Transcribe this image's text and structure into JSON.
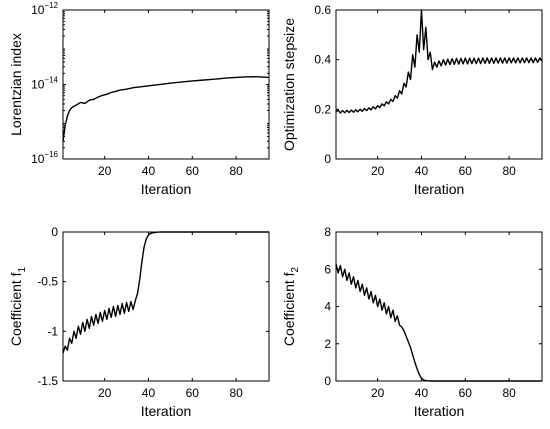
{
  "chart_data": [
    {
      "type": "line",
      "xlabel": "Iteration",
      "ylabel": "Lorentzian index",
      "yscale": "log",
      "xlim": [
        1,
        95
      ],
      "ylim": [
        1e-16,
        1e-12
      ],
      "xticks": [
        20,
        40,
        60,
        80
      ],
      "yticks": [
        {
          "value": 1e-16,
          "base": "10",
          "exp": "−16"
        },
        {
          "value": 1e-14,
          "base": "10",
          "exp": "−14"
        },
        {
          "value": 1e-12,
          "base": "10",
          "exp": "−12"
        }
      ],
      "series": [
        {
          "x": [
            1,
            2,
            3,
            4,
            5,
            7,
            9,
            11,
            13,
            15,
            17,
            19,
            21,
            23,
            25,
            27,
            30,
            33,
            36,
            40,
            44,
            48,
            52,
            56,
            60,
            64,
            68,
            72,
            76,
            80,
            84,
            88,
            92,
            95
          ],
          "y": [
            3e-16,
            8e-16,
            1.4e-15,
            2e-15,
            2.4e-15,
            2.8e-15,
            3.3e-15,
            3.1e-15,
            3.8e-15,
            4e-15,
            4.6e-15,
            5.1e-15,
            5.5e-15,
            6.1e-15,
            6.5e-15,
            7.1e-15,
            7.5e-15,
            8.2e-15,
            8.6e-15,
            9.2e-15,
            9.8e-15,
            1.05e-14,
            1.12e-14,
            1.18e-14,
            1.25e-14,
            1.3e-14,
            1.36e-14,
            1.42e-14,
            1.5e-14,
            1.55e-14,
            1.6e-14,
            1.62e-14,
            1.58e-14,
            1.55e-14
          ]
        }
      ]
    },
    {
      "type": "line",
      "xlabel": "Iteration",
      "ylabel": "Optimization stepsize",
      "yscale": "linear",
      "xlim": [
        1,
        95
      ],
      "ylim": [
        0,
        0.6
      ],
      "xticks": [
        20,
        40,
        60,
        80
      ],
      "yticks": [
        {
          "value": 0,
          "label": "0"
        },
        {
          "value": 0.2,
          "label": "0.2"
        },
        {
          "value": 0.4,
          "label": "0.4"
        },
        {
          "value": 0.6,
          "label": "0.6"
        }
      ],
      "series": [
        {
          "x": [
            1,
            2,
            3,
            4,
            5,
            6,
            7,
            8,
            9,
            10,
            11,
            12,
            13,
            14,
            15,
            16,
            17,
            18,
            19,
            20,
            21,
            22,
            23,
            24,
            25,
            26,
            27,
            28,
            29,
            30,
            31,
            32,
            33,
            34,
            35,
            36,
            37,
            38,
            39,
            40,
            41,
            42,
            43,
            44,
            45,
            46,
            47,
            48,
            49,
            50,
            51,
            52,
            53,
            54,
            55,
            56,
            57,
            58,
            59,
            60,
            61,
            62,
            63,
            64,
            65,
            66,
            67,
            68,
            69,
            70,
            71,
            72,
            73,
            74,
            75,
            76,
            77,
            78,
            79,
            80,
            81,
            82,
            83,
            84,
            85,
            86,
            87,
            88,
            89,
            90,
            91,
            92,
            93,
            94,
            95
          ],
          "y": [
            0.19,
            0.197,
            0.185,
            0.195,
            0.186,
            0.196,
            0.187,
            0.197,
            0.188,
            0.198,
            0.19,
            0.2,
            0.192,
            0.203,
            0.195,
            0.206,
            0.198,
            0.21,
            0.202,
            0.215,
            0.207,
            0.222,
            0.214,
            0.23,
            0.222,
            0.24,
            0.232,
            0.255,
            0.245,
            0.275,
            0.262,
            0.305,
            0.29,
            0.35,
            0.32,
            0.42,
            0.37,
            0.5,
            0.43,
            0.6,
            0.44,
            0.53,
            0.4,
            0.43,
            0.36,
            0.39,
            0.37,
            0.395,
            0.375,
            0.4,
            0.378,
            0.402,
            0.38,
            0.404,
            0.381,
            0.405,
            0.382,
            0.405,
            0.383,
            0.406,
            0.383,
            0.406,
            0.384,
            0.406,
            0.384,
            0.406,
            0.384,
            0.407,
            0.385,
            0.407,
            0.385,
            0.407,
            0.385,
            0.407,
            0.386,
            0.407,
            0.386,
            0.407,
            0.386,
            0.407,
            0.387,
            0.407,
            0.387,
            0.407,
            0.387,
            0.407,
            0.388,
            0.407,
            0.388,
            0.407,
            0.388,
            0.407,
            0.389,
            0.407,
            0.395
          ]
        }
      ]
    },
    {
      "type": "line",
      "xlabel": "Iteration",
      "ylabel_base": "Coefficient f",
      "ylabel_sub": "1",
      "yscale": "linear",
      "xlim": [
        1,
        95
      ],
      "ylim": [
        -1.5,
        0
      ],
      "xticks": [
        20,
        40,
        60,
        80
      ],
      "yticks": [
        {
          "value": -1.5,
          "label": "-1.5"
        },
        {
          "value": -1,
          "label": "-1"
        },
        {
          "value": -0.5,
          "label": "-0.5"
        },
        {
          "value": 0,
          "label": "0"
        }
      ],
      "series": [
        {
          "x": [
            1,
            2,
            3,
            4,
            5,
            6,
            7,
            8,
            9,
            10,
            11,
            12,
            13,
            14,
            15,
            16,
            17,
            18,
            19,
            20,
            21,
            22,
            23,
            24,
            25,
            26,
            27,
            28,
            29,
            30,
            31,
            32,
            33,
            34,
            35,
            36,
            37,
            38,
            39,
            40,
            41,
            42,
            43,
            44,
            45,
            46,
            47,
            48,
            50,
            55,
            60,
            65,
            70,
            75,
            80,
            85,
            90,
            95
          ],
          "y": [
            -1.22,
            -1.15,
            -1.19,
            -1.07,
            -1.12,
            -1.0,
            -1.07,
            -0.95,
            -1.03,
            -0.91,
            -1.0,
            -0.88,
            -0.97,
            -0.85,
            -0.94,
            -0.83,
            -0.92,
            -0.81,
            -0.9,
            -0.79,
            -0.88,
            -0.77,
            -0.86,
            -0.75,
            -0.85,
            -0.74,
            -0.83,
            -0.72,
            -0.82,
            -0.71,
            -0.8,
            -0.7,
            -0.78,
            -0.69,
            -0.62,
            -0.48,
            -0.3,
            -0.15,
            -0.07,
            -0.03,
            -0.015,
            -0.008,
            -0.004,
            -0.002,
            -0.001,
            0,
            0,
            0,
            0,
            0,
            0,
            0,
            0,
            0,
            0,
            0,
            0,
            0
          ]
        }
      ]
    },
    {
      "type": "line",
      "xlabel": "Iteration",
      "ylabel_base": "Coefficient f",
      "ylabel_sub": "2",
      "yscale": "linear",
      "xlim": [
        1,
        95
      ],
      "ylim": [
        0,
        8
      ],
      "xticks": [
        20,
        40,
        60,
        80
      ],
      "yticks": [
        {
          "value": 0,
          "label": "0"
        },
        {
          "value": 2,
          "label": "2"
        },
        {
          "value": 4,
          "label": "4"
        },
        {
          "value": 6,
          "label": "6"
        },
        {
          "value": 8,
          "label": "8"
        }
      ],
      "series": [
        {
          "x": [
            1,
            2,
            3,
            4,
            5,
            6,
            7,
            8,
            9,
            10,
            11,
            12,
            13,
            14,
            15,
            16,
            17,
            18,
            19,
            20,
            21,
            22,
            23,
            24,
            25,
            26,
            27,
            28,
            29,
            30,
            31,
            32,
            33,
            34,
            35,
            36,
            37,
            38,
            39,
            40,
            41,
            42,
            43,
            44,
            45,
            46,
            48,
            50,
            55,
            60,
            65,
            70,
            75,
            80,
            85,
            90,
            95
          ],
          "y": [
            6.3,
            5.8,
            6.2,
            5.6,
            6.0,
            5.4,
            5.8,
            5.2,
            5.6,
            5.0,
            5.4,
            4.8,
            5.2,
            4.6,
            5.0,
            4.4,
            4.8,
            4.2,
            4.6,
            4.0,
            4.4,
            3.8,
            4.2,
            3.6,
            4.0,
            3.4,
            3.8,
            3.2,
            3.5,
            3.0,
            2.9,
            2.7,
            2.4,
            2.1,
            1.8,
            1.4,
            1.0,
            0.65,
            0.35,
            0.15,
            0.06,
            0.02,
            0.01,
            0,
            0,
            0,
            0,
            0,
            0,
            0,
            0,
            0,
            0,
            0,
            0,
            0,
            0
          ]
        }
      ]
    }
  ]
}
